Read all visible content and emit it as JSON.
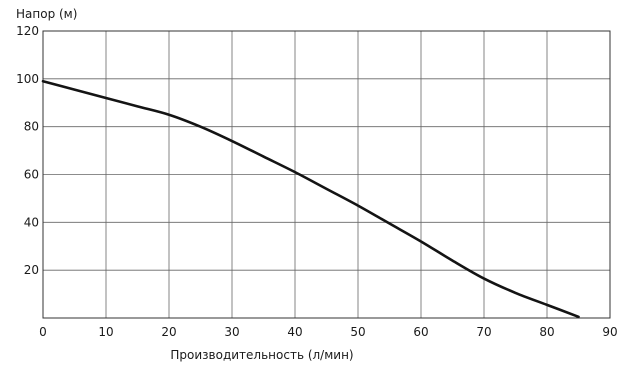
{
  "chart_data": {
    "type": "line",
    "ylabel": "Напор (м)",
    "xlabel": "Производительность (л/мин)",
    "xlim": [
      0,
      90
    ],
    "ylim": [
      0,
      120
    ],
    "x_ticks": [
      "0",
      "10",
      "20",
      "30",
      "40",
      "50",
      "60",
      "70",
      "80",
      "90"
    ],
    "y_ticks": [
      "20",
      "40",
      "60",
      "80",
      "100",
      "120"
    ],
    "grid": true,
    "series": [
      {
        "color": "#141414",
        "x": [
          0,
          5,
          10,
          15,
          20,
          25,
          30,
          35,
          40,
          45,
          50,
          55,
          60,
          65,
          70,
          75,
          80,
          85
        ],
        "y": [
          99,
          95.5,
          92,
          88.5,
          85,
          80,
          74,
          67.5,
          61,
          54,
          47,
          39.5,
          32,
          24,
          16.5,
          10.5,
          5.5,
          0.5
        ]
      }
    ]
  }
}
